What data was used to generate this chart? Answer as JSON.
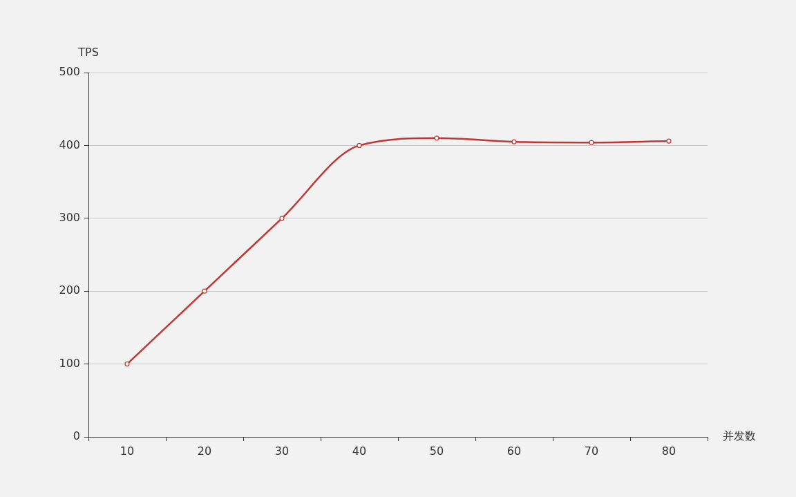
{
  "chart_data": {
    "type": "line",
    "xlabel": "并发数",
    "ylabel": "TPS",
    "categories": [
      "10",
      "20",
      "30",
      "40",
      "50",
      "60",
      "70",
      "80"
    ],
    "series": [
      {
        "color": "#c23531",
        "values": [
          100,
          200,
          300,
          400,
          410,
          405,
          404,
          406
        ]
      }
    ],
    "ylim": [
      0,
      500
    ],
    "yticks": [
      0,
      100,
      200,
      300,
      400,
      500
    ],
    "grid": "y",
    "marker": "circle"
  }
}
